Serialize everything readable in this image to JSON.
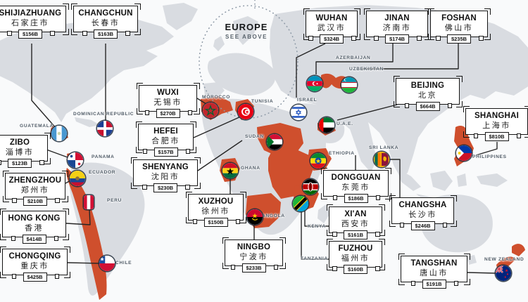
{
  "meta": {
    "region_note": {
      "title": "EUROPE",
      "subtitle": "SEE ABOVE"
    }
  },
  "colors": {
    "highlight": "#cf4f2d",
    "land": "#d9dce1",
    "ocean": "#f9fafb",
    "connector": "#262626",
    "label": "#4d5965"
  },
  "cities": [
    {
      "id": "shijiazhuang",
      "name": "SHIJIAZHUANG",
      "name_local": "石家庄市",
      "gdp": "$156B",
      "country": "guatemala"
    },
    {
      "id": "changchun",
      "name": "CHANGCHUN",
      "name_local": "长春市",
      "gdp": "$163B",
      "country": "dominican-republic"
    },
    {
      "id": "wuhan",
      "name": "WUHAN",
      "name_local": "武汉市",
      "gdp": "$324B",
      "country": "israel"
    },
    {
      "id": "jinan",
      "name": "JINAN",
      "name_local": "济南市",
      "gdp": "$174B",
      "country": "azerbaijan"
    },
    {
      "id": "foshan",
      "name": "FOSHAN",
      "name_local": "佛山市",
      "gdp": "$235B",
      "country": "uzbekistan"
    },
    {
      "id": "beijing",
      "name": "BEIJING",
      "name_local": "北京",
      "gdp": "$664B",
      "country": "uae"
    },
    {
      "id": "shanghai",
      "name": "SHANGHAI",
      "name_local": "上海市",
      "gdp": "$810B",
      "country": "philippines"
    },
    {
      "id": "zibo",
      "name": "ZIBO",
      "name_local": "淄博市",
      "gdp": "$123B",
      "country": "panama"
    },
    {
      "id": "zhengzhou",
      "name": "ZHENGZHOU",
      "name_local": "郑州市",
      "gdp": "$210B",
      "country": "ecuador"
    },
    {
      "id": "hong-kong",
      "name": "HONG KONG",
      "name_local": "香港",
      "gdp": "$414B",
      "country": "peru"
    },
    {
      "id": "chongqing",
      "name": "CHONGQING",
      "name_local": "重庆市",
      "gdp": "$425B",
      "country": "chile"
    },
    {
      "id": "wuxi",
      "name": "WUXI",
      "name_local": "无锡市",
      "gdp": "$270B",
      "country": "morocco"
    },
    {
      "id": "hefei",
      "name": "HEFEI",
      "name_local": "合肥市",
      "gdp": "$157B",
      "country": "tunisia"
    },
    {
      "id": "shenyang",
      "name": "SHENYANG",
      "name_local": "沈阳市",
      "gdp": "$230B",
      "country": "sudan"
    },
    {
      "id": "xuzhou",
      "name": "XUZHOU",
      "name_local": "徐州市",
      "gdp": "$150B",
      "country": "ghana"
    },
    {
      "id": "ningbo",
      "name": "NINGBO",
      "name_local": "宁波市",
      "gdp": "$233B",
      "country": "angola"
    },
    {
      "id": "dongguan",
      "name": "DONGGUAN",
      "name_local": "东莞市",
      "gdp": "$186B",
      "country": "ethiopia"
    },
    {
      "id": "xian",
      "name": "XI'AN",
      "name_local": "西安市",
      "gdp": "$161B",
      "country": "kenya"
    },
    {
      "id": "fuzhou",
      "name": "FUZHOU",
      "name_local": "福州市",
      "gdp": "$160B",
      "country": "tanzania"
    },
    {
      "id": "changsha",
      "name": "CHANGSHA",
      "name_local": "长沙市",
      "gdp": "$246B",
      "country": "sri-lanka"
    },
    {
      "id": "tangshan",
      "name": "TANGSHAN",
      "name_local": "唐山市",
      "gdp": "$191B",
      "country": "new-zealand"
    }
  ],
  "countries": [
    {
      "id": "guatemala",
      "label": "GUATEMALA"
    },
    {
      "id": "dominican-republic",
      "label": "DOMINICAN REPUBLIC"
    },
    {
      "id": "panama",
      "label": "PANAMA"
    },
    {
      "id": "ecuador",
      "label": "ECUADOR"
    },
    {
      "id": "peru",
      "label": "PERU"
    },
    {
      "id": "chile",
      "label": "CHILE"
    },
    {
      "id": "morocco",
      "label": "MOROCCO"
    },
    {
      "id": "tunisia",
      "label": "TUNISIA"
    },
    {
      "id": "israel",
      "label": "ISRAEL"
    },
    {
      "id": "sudan",
      "label": "SUDAN"
    },
    {
      "id": "ghana",
      "label": "GHANA"
    },
    {
      "id": "angola",
      "label": "ANGOLA"
    },
    {
      "id": "kenya",
      "label": "KENYA"
    },
    {
      "id": "tanzania",
      "label": "TANZANIA"
    },
    {
      "id": "ethiopia",
      "label": "ETHIOPIA"
    },
    {
      "id": "azerbaijan",
      "label": "AZERBAIJAN"
    },
    {
      "id": "uzbekistan",
      "label": "UZBEKISTAN"
    },
    {
      "id": "uae",
      "label": "U.A.E."
    },
    {
      "id": "sri-lanka",
      "label": "SRI LANKA"
    },
    {
      "id": "philippines",
      "label": "PHILIPPINES"
    },
    {
      "id": "new-zealand",
      "label": "NEW ZEALAND"
    }
  ]
}
